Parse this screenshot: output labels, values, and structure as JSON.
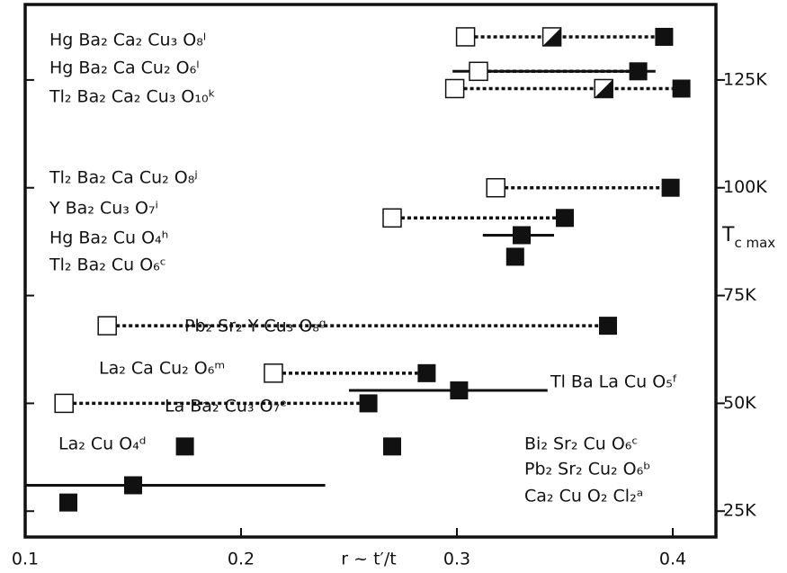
{
  "chart_data": {
    "type": "scatter",
    "x_label": "r ~ t′/t",
    "y_label": "T",
    "y_label_subscript": "c max",
    "xlim": [
      0.1,
      0.42
    ],
    "xticks": [
      0.1,
      0.2,
      0.3,
      0.4
    ],
    "ylim": [
      19,
      142.5
    ],
    "yticks": [
      {
        "value": 25,
        "label": "25K"
      },
      {
        "value": 50,
        "label": "50K"
      },
      {
        "value": 75,
        "label": "75K"
      },
      {
        "value": 100,
        "label": "100K"
      },
      {
        "value": 125,
        "label": "125K"
      }
    ],
    "compounds": [
      {
        "label": "Hg Ba₂ Ca₂ Cu₃ O₈ˡ",
        "tc": 135,
        "open": 0.304,
        "half": 0.344,
        "filled": 0.396
      },
      {
        "label": "Hg Ba₂ Ca Cu₂ O₆ˡ",
        "tc": 127,
        "open": 0.31,
        "filled": 0.384,
        "r_range": [
          0.298,
          0.392
        ]
      },
      {
        "label": "Tl₂ Ba₂ Ca₂ Cu₃ O₁₀ᵏ",
        "tc": 123,
        "open": 0.299,
        "half": 0.368,
        "filled": 0.404
      },
      {
        "label": "Tl₂ Ba₂ Ca Cu₂ O₈ʲ",
        "tc": 100,
        "open": 0.318,
        "filled": 0.399
      },
      {
        "label": "Y  Ba₂ Cu₃ O₇ⁱ",
        "tc": 93,
        "open": 0.27,
        "filled": 0.35
      },
      {
        "label": "Hg Ba₂ Cu O₄ʰ",
        "tc": 89,
        "filled": 0.33,
        "r_range": [
          0.312,
          0.345
        ]
      },
      {
        "label": "Tl₂ Ba₂ Cu O₆ᶜ",
        "tc": 84,
        "filled": 0.327
      },
      {
        "label": "Pb₂ Sr₂ Y Cu₃ O₈ᵍ",
        "tc": 68,
        "open": 0.138,
        "filled": 0.37
      },
      {
        "label": "La₂ Ca Cu₂ O₆ᵐ",
        "tc": 57,
        "open": 0.215,
        "filled": 0.286
      },
      {
        "label": "Tl Ba La Cu O₅ᶠ",
        "tc": 53,
        "filled": 0.301,
        "r_range": [
          0.25,
          0.342
        ]
      },
      {
        "label": "La Ba₂ Cu₃ O₇ᵉ",
        "tc": 50,
        "open": 0.118,
        "filled": 0.259
      },
      {
        "label": "La₂ Cu O₄ᵈ",
        "tc": 40,
        "filled": 0.174
      },
      {
        "label": "Bi₂ Sr₂ Cu O₆ᶜ",
        "tc": 40,
        "filled": 0.27
      },
      {
        "label": "Pb₂ Sr₂ Cu₂ O₆ᵇ",
        "tc": 31,
        "filled": 0.15,
        "r_range": [
          0.1,
          0.239
        ]
      },
      {
        "label": "Ca₂ Cu O₂ Cl₂ᵃ",
        "tc": 27,
        "filled": 0.12
      }
    ]
  }
}
